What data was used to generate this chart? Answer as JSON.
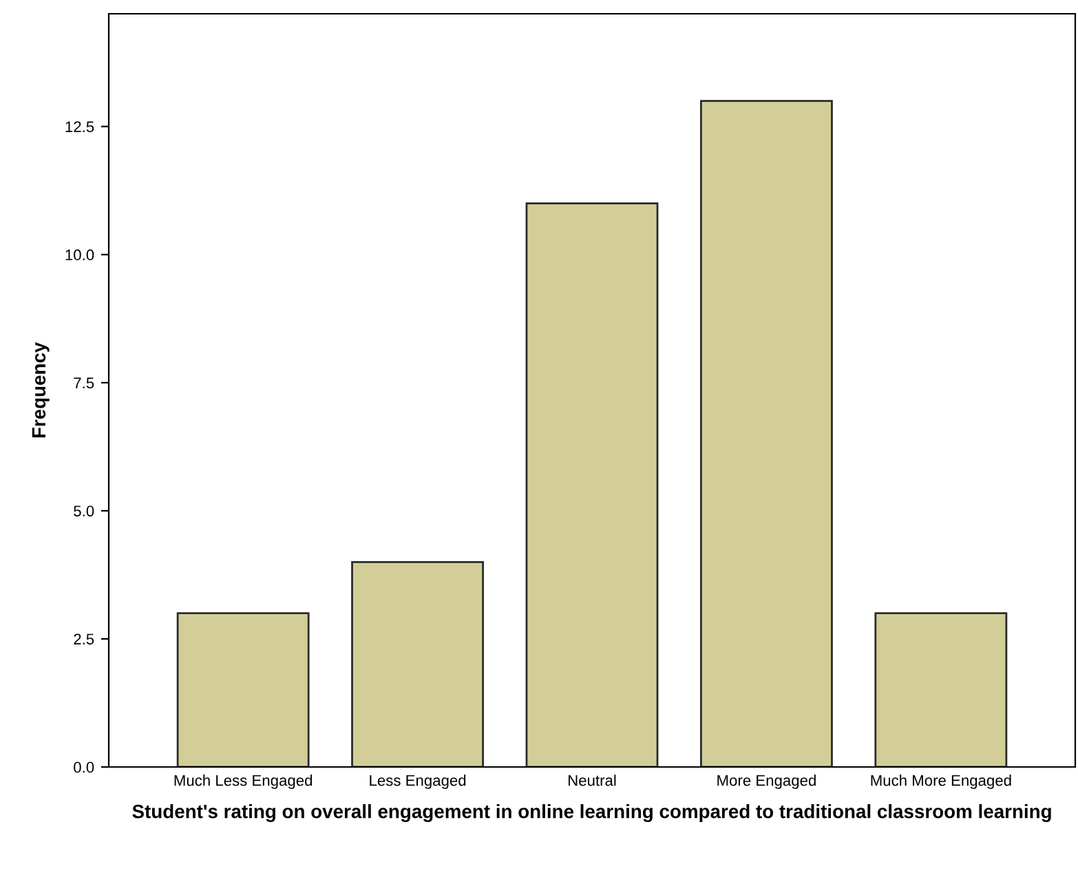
{
  "chart_data": {
    "type": "bar",
    "categories": [
      "Much Less Engaged",
      "Less Engaged",
      "Neutral",
      "More Engaged",
      "Much More Engaged"
    ],
    "values": [
      3,
      4,
      11,
      13,
      3
    ],
    "color": "#d3ce97",
    "xlabel": "Student's rating on overall engagement in online learning compared to traditional classroom learning",
    "ylabel": "Frequency",
    "ylim": [
      0,
      14.7
    ],
    "yticks": [
      {
        "value": 0,
        "label": "0.0"
      },
      {
        "value": 2.5,
        "label": "2.5"
      },
      {
        "value": 5,
        "label": "5.0"
      },
      {
        "value": 7.5,
        "label": "7.5"
      },
      {
        "value": 10,
        "label": "10.0"
      },
      {
        "value": 12.5,
        "label": "12.5"
      }
    ],
    "grid": false,
    "legend": false
  }
}
